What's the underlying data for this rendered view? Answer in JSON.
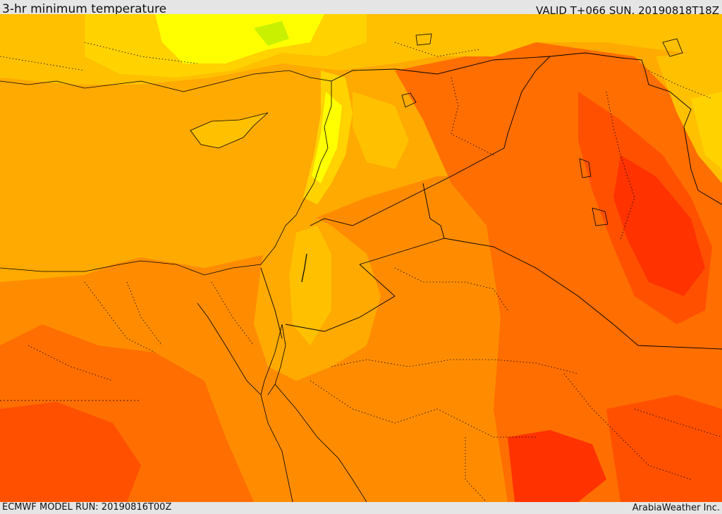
{
  "header": {
    "title": "3-hr minimum temperature",
    "valid": "VALID T+066 SUN. 20190818T18Z"
  },
  "footer": {
    "model_run": "ECMWF MODEL RUN: 20190816T00Z",
    "credit": "ArabiaWeather Inc."
  },
  "palette": {
    "lime": "#c8f000",
    "yellow": "#ffff00",
    "gold": "#ffd200",
    "light_orange": "#ffc000",
    "amber": "#ffaa00",
    "orange": "#ff8c00",
    "dark_orange": "#ff6e00",
    "red_orange": "#ff5000",
    "red": "#ff3200",
    "border": "#000000"
  }
}
